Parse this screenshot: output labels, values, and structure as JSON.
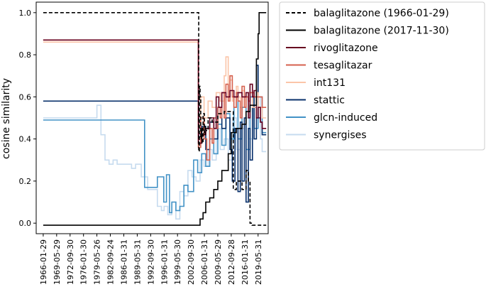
{
  "chart_data": {
    "type": "line",
    "title": "",
    "xlabel": "",
    "ylabel": "cosine similarity",
    "x_ticks": [
      "1966-01-29",
      "1969-05-29",
      "1972-09-30",
      "1976-01-30",
      "1979-05-26",
      "1982-09-24",
      "1986-01-31",
      "1989-05-31",
      "1992-09-30",
      "1996-01-31",
      "1999-05-30",
      "2002-09-30",
      "2006-01-31",
      "2009-05-29",
      "2012-09-28",
      "2016-01-31",
      "2019-05-31"
    ],
    "xlim": [
      "1964-05-01",
      "2021-12-01"
    ],
    "y_ticks": [
      0.0,
      0.2,
      0.4,
      0.6,
      0.8,
      1.0
    ],
    "y_tick_labels": [
      "0.0",
      "0.2",
      "0.4",
      "0.6",
      "0.8",
      "1.0"
    ],
    "ylim": [
      -0.05,
      1.05
    ],
    "grid": false,
    "legend_position": "outside-right",
    "series": [
      {
        "name": "balaglitazone (1966-01-29)",
        "color": "#000000",
        "dash": true,
        "x": [
          "1966-01-29",
          "2004-07-15",
          "2004-09-01",
          "2004-11-01",
          "2005-01-01",
          "2005-03-01",
          "2005-05-01",
          "2005-07-01",
          "2005-10-01",
          "2006-01-31",
          "2006-04-01",
          "2006-07-01",
          "2007-01-01",
          "2008-01-01",
          "2009-05-29",
          "2011-01-01",
          "2012-09-28",
          "2013-04-01",
          "2014-01-01",
          "2015-06-01",
          "2016-06-01",
          "2017-01-01",
          "2017-06-01",
          "2017-11-30",
          "2021-06-01"
        ],
        "y": [
          1.0,
          1.0,
          0.34,
          0.65,
          0.6,
          0.4,
          0.45,
          0.38,
          0.52,
          0.42,
          0.46,
          0.44,
          0.5,
          0.48,
          0.52,
          0.53,
          0.53,
          0.16,
          0.2,
          0.16,
          0.25,
          0.2,
          0.0,
          -0.01,
          -0.01
        ]
      },
      {
        "name": "balaglitazone (2017-11-30)",
        "color": "#000000",
        "x": [
          "1966-01-29",
          "2004-07-01",
          "2005-01-01",
          "2005-10-01",
          "2006-06-01",
          "2007-06-01",
          "2008-06-01",
          "2009-05-29",
          "2010-06-01",
          "2012-01-01",
          "2012-09-28",
          "2014-01-01",
          "2015-06-01",
          "2016-06-01",
          "2017-06-01",
          "2018-06-01",
          "2019-01-01",
          "2019-05-31",
          "2019-09-01",
          "2021-06-01"
        ],
        "y": [
          -0.01,
          -0.01,
          0.02,
          0.05,
          0.1,
          0.12,
          0.16,
          0.2,
          0.25,
          0.33,
          0.43,
          0.45,
          0.47,
          0.53,
          0.56,
          0.56,
          0.78,
          0.9,
          1.0,
          1.0
        ]
      },
      {
        "name": "rivoglitazone",
        "color": "#67001f",
        "x": [
          "1966-01-29",
          "2004-06-01",
          "2004-08-01",
          "2005-06-01",
          "2006-06-01",
          "2007-06-01",
          "2008-06-01",
          "2009-01-01",
          "2009-09-01",
          "2010-06-01",
          "2011-06-01",
          "2012-06-01",
          "2013-06-01",
          "2014-06-01",
          "2015-06-01",
          "2016-06-01",
          "2017-01-01",
          "2017-06-01",
          "2018-01-01",
          "2018-06-01",
          "2019-01-01",
          "2019-06-01",
          "2020-01-01",
          "2020-06-01",
          "2021-06-01"
        ],
        "y": [
          0.87,
          0.87,
          0.38,
          0.42,
          0.45,
          0.5,
          0.45,
          0.6,
          0.55,
          0.62,
          0.6,
          0.63,
          0.6,
          0.62,
          0.6,
          0.62,
          0.5,
          0.66,
          0.6,
          0.63,
          0.5,
          0.55,
          0.48,
          0.45,
          0.45
        ]
      },
      {
        "name": "tesaglitazar",
        "color": "#d6604d",
        "x": [
          "1966-01-29",
          "2004-06-01",
          "2004-08-01",
          "2005-03-01",
          "2006-01-01",
          "2006-09-01",
          "2007-06-01",
          "2008-01-01",
          "2008-06-01",
          "2009-01-01",
          "2009-06-01",
          "2010-01-01",
          "2010-06-01",
          "2011-01-01",
          "2011-06-01",
          "2012-01-01",
          "2012-06-01",
          "2013-01-01",
          "2013-06-01",
          "2014-01-01",
          "2014-06-01",
          "2015-01-01",
          "2015-06-01",
          "2016-01-01",
          "2016-06-01",
          "2017-01-01",
          "2017-06-01",
          "2018-06-01",
          "2019-06-01",
          "2020-06-01",
          "2021-06-01"
        ],
        "y": [
          0.87,
          0.87,
          0.36,
          0.5,
          0.4,
          0.3,
          0.45,
          0.38,
          0.5,
          0.45,
          0.55,
          0.5,
          0.62,
          0.5,
          0.66,
          0.58,
          0.7,
          0.6,
          0.55,
          0.62,
          0.58,
          0.5,
          0.65,
          0.55,
          0.6,
          0.58,
          0.62,
          0.6,
          0.6,
          0.55,
          0.55
        ]
      },
      {
        "name": "int131",
        "color": "#fbc5a9",
        "x": [
          "1966-01-29",
          "2004-06-01",
          "2004-08-01",
          "2005-03-01",
          "2006-01-01",
          "2007-01-01",
          "2008-01-01",
          "2009-01-01",
          "2010-01-01",
          "2011-01-01",
          "2011-06-01",
          "2012-01-01",
          "2012-06-01",
          "2013-01-01",
          "2013-06-01",
          "2014-01-01",
          "2014-06-01",
          "2015-01-01",
          "2015-06-01",
          "2016-01-01",
          "2016-06-01",
          "2017-01-01",
          "2018-01-01",
          "2019-01-01",
          "2019-06-01",
          "2020-06-01",
          "2021-06-01"
        ],
        "y": [
          0.86,
          0.86,
          0.47,
          0.6,
          0.5,
          0.58,
          0.55,
          0.62,
          0.58,
          0.7,
          0.79,
          0.6,
          0.68,
          0.58,
          0.55,
          0.65,
          0.6,
          0.55,
          0.63,
          0.55,
          0.6,
          0.62,
          0.55,
          0.62,
          0.55,
          0.5,
          0.5
        ]
      },
      {
        "name": "stattic",
        "color": "#08306b",
        "x": [
          "1966-01-29",
          "2004-07-01",
          "2004-09-01",
          "2005-06-01",
          "2006-06-01",
          "2007-06-01",
          "2008-06-01",
          "2009-06-01",
          "2010-06-01",
          "2011-06-01",
          "2012-06-01",
          "2013-01-01",
          "2013-09-01",
          "2014-06-01",
          "2015-01-01",
          "2015-06-01",
          "2016-01-01",
          "2016-06-01",
          "2017-01-01",
          "2017-06-01",
          "2018-01-01",
          "2018-06-01",
          "2019-01-01",
          "2019-06-01",
          "2020-01-01",
          "2020-06-01",
          "2021-06-01"
        ],
        "y": [
          0.58,
          0.58,
          0.41,
          0.46,
          0.35,
          0.48,
          0.4,
          0.55,
          0.45,
          0.5,
          0.35,
          0.2,
          0.45,
          0.15,
          0.48,
          0.2,
          0.5,
          0.1,
          0.45,
          0.3,
          0.6,
          0.4,
          0.75,
          0.5,
          0.48,
          0.42,
          0.42
        ]
      },
      {
        "name": "glcn-induced",
        "color": "#4292c6",
        "x": [
          "1966-01-29",
          "1991-03-01",
          "1991-04-01",
          "1994-01-01",
          "1994-06-01",
          "1996-01-01",
          "1996-09-01",
          "1997-06-01",
          "1998-01-01",
          "1999-01-01",
          "2000-01-01",
          "2001-01-01",
          "2002-01-01",
          "2003-06-01",
          "2004-06-01",
          "2005-06-01",
          "2006-06-01",
          "2007-06-01",
          "2008-06-01",
          "2009-06-01",
          "2010-06-01",
          "2011-06-01",
          "2012-06-01",
          "2013-06-01",
          "2014-06-01",
          "2015-06-01",
          "2016-06-01",
          "2017-06-01",
          "2018-06-01",
          "2019-06-01",
          "2020-06-01",
          "2021-06-01"
        ],
        "y": [
          0.49,
          0.49,
          0.17,
          0.17,
          0.22,
          0.1,
          0.23,
          0.05,
          0.1,
          0.06,
          0.08,
          0.18,
          0.15,
          0.3,
          0.24,
          0.33,
          0.27,
          0.4,
          0.33,
          0.47,
          0.37,
          0.52,
          0.4,
          0.6,
          0.4,
          0.55,
          0.35,
          0.6,
          0.45,
          0.6,
          0.43,
          0.43
        ]
      },
      {
        "name": "synergises",
        "color": "#c6dbef",
        "x": [
          "1966-01-29",
          "1979-01-01",
          "1979-06-01",
          "1980-06-01",
          "1981-06-01",
          "1982-06-01",
          "1983-06-01",
          "1984-06-01",
          "1986-01-31",
          "1988-01-01",
          "1989-01-01",
          "1990-06-01",
          "1992-01-01",
          "1993-06-01",
          "1994-06-01",
          "1995-06-01",
          "1996-01-31",
          "1997-01-01",
          "1998-01-01",
          "1999-01-01",
          "2000-01-01",
          "2001-01-01",
          "2002-01-01",
          "2003-01-01",
          "2004-01-01",
          "2005-01-01",
          "2006-01-01",
          "2007-01-01",
          "2008-01-01",
          "2009-01-01",
          "2010-01-01",
          "2011-01-01",
          "2012-01-01",
          "2013-01-01",
          "2014-01-01",
          "2015-01-01",
          "2016-01-01",
          "2017-01-01",
          "2018-01-01",
          "2019-01-01",
          "2019-06-01",
          "2020-01-01",
          "2020-06-01",
          "2021-06-01"
        ],
        "y": [
          0.5,
          0.5,
          0.56,
          0.42,
          0.3,
          0.28,
          0.3,
          0.28,
          0.28,
          0.26,
          0.28,
          0.22,
          0.16,
          0.16,
          0.08,
          0.06,
          0.08,
          0.04,
          0.1,
          0.02,
          0.15,
          0.13,
          0.25,
          0.22,
          0.2,
          0.3,
          0.27,
          0.35,
          0.3,
          0.45,
          0.35,
          0.4,
          0.3,
          0.5,
          0.35,
          0.45,
          0.5,
          0.4,
          0.55,
          0.5,
          0.6,
          0.4,
          0.34,
          0.34
        ]
      }
    ]
  }
}
